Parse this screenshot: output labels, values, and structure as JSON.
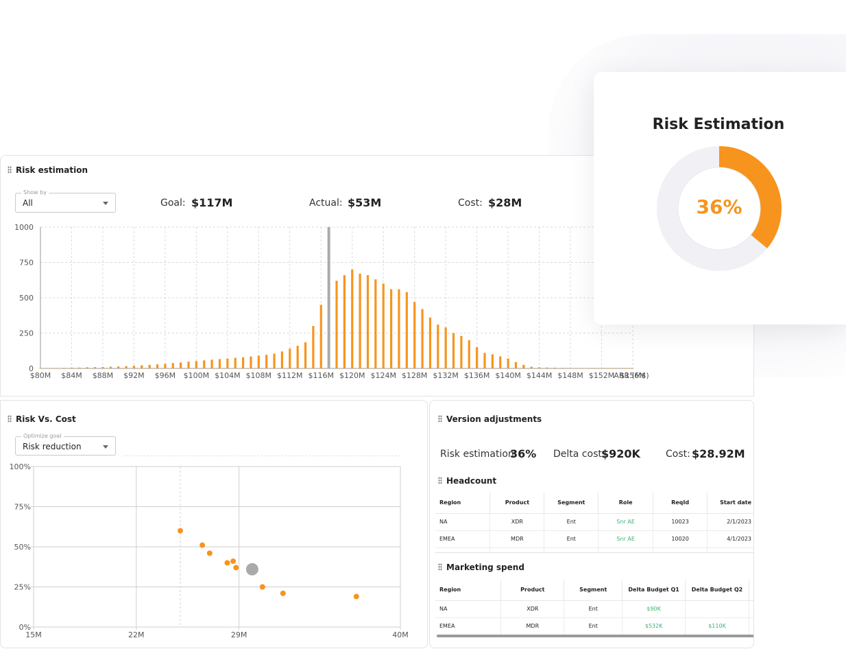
{
  "risk_panel": {
    "title": "Risk estimation",
    "show_by": {
      "legend": "Show by",
      "value": "All"
    },
    "goal": {
      "label": "Goal:",
      "value": "$117M"
    },
    "actual": {
      "label": "Actual:",
      "value": "$53M"
    },
    "cost": {
      "label": "Cost:",
      "value": "$28M"
    }
  },
  "risk_card": {
    "title": "Risk Estimation",
    "percent_label": "36%",
    "percent": 0.36,
    "accent": "#f7941d",
    "track": "#f0f0f5"
  },
  "risk_vs_cost": {
    "title": "Risk Vs. Cost",
    "optimize": {
      "legend": "Optimize goal",
      "value": "Risk reduction"
    }
  },
  "version": {
    "title": "Version adjustments",
    "risk": {
      "label": "Risk estimation:",
      "value": "36%"
    },
    "delta": {
      "label": "Delta cost:",
      "value": "$920K"
    },
    "cost": {
      "label": "Cost:",
      "value": "$28.92M"
    },
    "headcount": {
      "title": "Headcount",
      "columns": [
        "Region",
        "Product",
        "Segment",
        "Role",
        "ReqId",
        "Start date"
      ],
      "rows": [
        [
          "NA",
          "XDR",
          "Ent",
          "Snr AE",
          "10023",
          "2/1/2023"
        ],
        [
          "EMEA",
          "MDR",
          "Ent",
          "Snr AE",
          "10020",
          "4/1/2023"
        ]
      ]
    },
    "marketing": {
      "title": "Marketing spend",
      "columns": [
        "Region",
        "Product",
        "Segment",
        "Delta Budget Q1",
        "Delta Budget Q2"
      ],
      "rows": [
        [
          "NA",
          "XDR",
          "Ent",
          "$90K",
          ""
        ],
        [
          "EMEA",
          "MDR",
          "Ent",
          "$532K",
          "$110K"
        ]
      ]
    }
  },
  "chart_data": [
    {
      "type": "bar",
      "title": "",
      "xlabel": "ARR (M$)",
      "ylabel": "",
      "ylim": [
        0,
        1000
      ],
      "yticks": [
        "0",
        "250",
        "500",
        "750",
        "1000"
      ],
      "xticks": [
        "$80M",
        "$84M",
        "$88M",
        "$92M",
        "$96M",
        "$100M",
        "$104M",
        "$108M",
        "$112M",
        "$116M",
        "$120M",
        "$124M",
        "$128M",
        "$132M",
        "$136M",
        "$140M",
        "$144M",
        "$148M",
        "$152M",
        "$156M"
      ],
      "x": [
        80,
        81,
        82,
        83,
        84,
        85,
        86,
        87,
        88,
        89,
        90,
        91,
        92,
        93,
        94,
        95,
        96,
        97,
        98,
        99,
        100,
        101,
        102,
        103,
        104,
        105,
        106,
        107,
        108,
        109,
        110,
        111,
        112,
        113,
        114,
        115,
        116,
        117,
        118,
        119,
        120,
        121,
        122,
        123,
        124,
        125,
        126,
        127,
        128,
        129,
        130,
        131,
        132,
        133,
        134,
        135,
        136,
        137,
        138,
        139,
        140,
        141,
        142,
        143,
        144,
        145,
        146,
        147,
        148,
        149,
        150,
        151,
        152,
        153,
        154,
        155,
        156
      ],
      "values": [
        2,
        3,
        3,
        4,
        5,
        6,
        8,
        9,
        10,
        12,
        14,
        16,
        19,
        22,
        25,
        29,
        33,
        38,
        42,
        48,
        52,
        57,
        62,
        66,
        70,
        75,
        79,
        84,
        90,
        96,
        104,
        120,
        140,
        160,
        185,
        300,
        450,
        590,
        620,
        660,
        700,
        670,
        660,
        630,
        600,
        560,
        560,
        540,
        470,
        420,
        360,
        310,
        290,
        250,
        230,
        200,
        150,
        110,
        100,
        85,
        70,
        45,
        25,
        12,
        8,
        6,
        5,
        4,
        3,
        2,
        2,
        1,
        1,
        1,
        1,
        1,
        1
      ],
      "goal_marker": {
        "x": 117,
        "value": 1000
      },
      "colors": {
        "bar": "#f7941d",
        "marker": "#aaaaaa"
      }
    },
    {
      "type": "scatter",
      "title": "",
      "xlabel": "",
      "ylabel": "",
      "xlim": [
        15,
        40
      ],
      "ylim": [
        0,
        100
      ],
      "xticks": [
        "15M",
        "22M",
        "29M",
        "40M"
      ],
      "yticks": [
        "0%",
        "25%",
        "50%",
        "75%",
        "100%"
      ],
      "points": [
        {
          "x": 25.0,
          "y": 60
        },
        {
          "x": 26.5,
          "y": 51
        },
        {
          "x": 27.0,
          "y": 46
        },
        {
          "x": 28.2,
          "y": 40
        },
        {
          "x": 28.6,
          "y": 41
        },
        {
          "x": 28.8,
          "y": 37
        },
        {
          "x": 30.6,
          "y": 25
        },
        {
          "x": 32.0,
          "y": 21
        },
        {
          "x": 37.0,
          "y": 19
        }
      ],
      "selected": {
        "x": 29.9,
        "y": 36
      },
      "colors": {
        "point": "#f7941d",
        "selected": "#aaaaaa"
      }
    }
  ]
}
